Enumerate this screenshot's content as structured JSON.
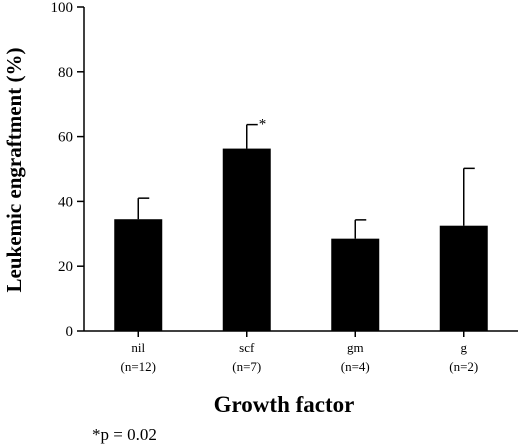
{
  "chart_data": {
    "type": "bar",
    "categories": [
      "nil",
      "scf",
      "gm",
      "g"
    ],
    "category_sublabels": [
      "(n=12)",
      "(n=7)",
      "(n=4)",
      "(n=2)"
    ],
    "values": [
      34.5,
      56.3,
      28.5,
      32.5
    ],
    "error_upper": [
      41.0,
      63.7,
      34.3,
      50.2
    ],
    "annotations": [
      "",
      "*",
      "",
      ""
    ],
    "ylim": [
      0,
      100
    ],
    "yticks": [
      0,
      20,
      40,
      60,
      80,
      100
    ],
    "xlabel": "Growth factor",
    "ylabel": "Leukemic engraftment (%)",
    "grid": false,
    "bar_color": "#000000"
  },
  "footnote": "*p = 0.02"
}
